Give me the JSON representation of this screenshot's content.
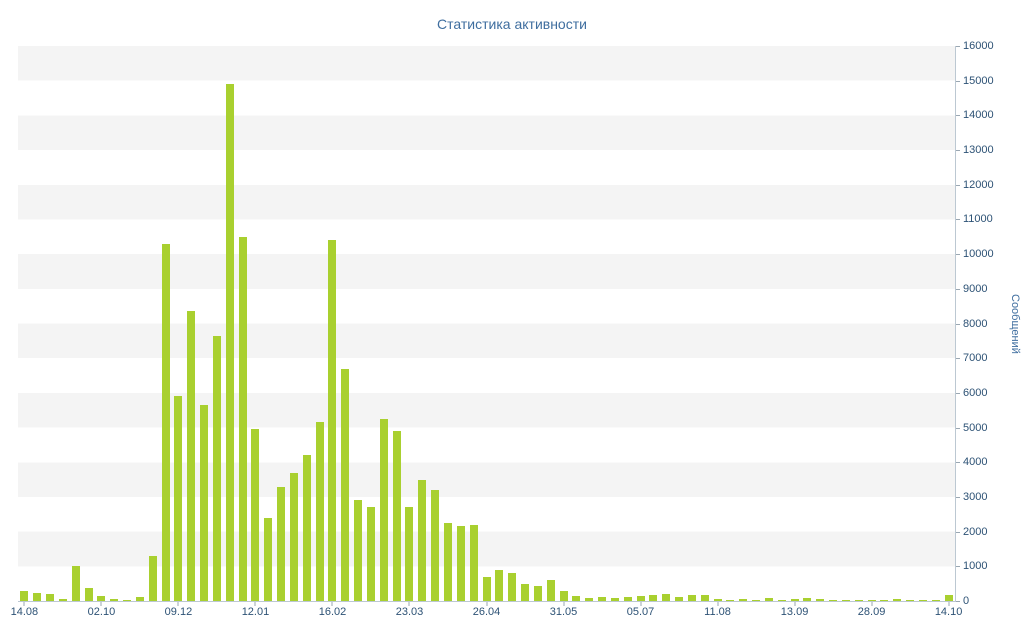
{
  "chart_data": {
    "type": "bar",
    "title": "Статистика активности",
    "ylabel": "Сообщений",
    "xlabel": "",
    "ylim": [
      0,
      16000
    ],
    "y_tick_step": 1000,
    "grid": "striped-horizontal-bands",
    "legend": "none",
    "x_tick_labels": [
      "14.08",
      "02.10",
      "09.12",
      "12.01",
      "16.02",
      "23.03",
      "26.04",
      "31.05",
      "05.07",
      "11.08",
      "13.09",
      "28.09",
      "14.10"
    ],
    "x_tick_indices": [
      0,
      6,
      12,
      18,
      24,
      30,
      36,
      42,
      48,
      54,
      60,
      66,
      72
    ],
    "values": [
      280,
      230,
      200,
      60,
      1000,
      380,
      150,
      60,
      30,
      120,
      1300,
      10300,
      5900,
      8350,
      5650,
      7650,
      14900,
      10500,
      4950,
      2400,
      3300,
      3700,
      4200,
      5150,
      10400,
      6700,
      2900,
      2700,
      5250,
      4900,
      2700,
      3500,
      3200,
      2250,
      2150,
      2200,
      700,
      900,
      800,
      500,
      430,
      600,
      280,
      150,
      100,
      130,
      90,
      120,
      150,
      180,
      200,
      120,
      160,
      180,
      60,
      40,
      50,
      30,
      80,
      40,
      60,
      90,
      50,
      30,
      20,
      30,
      40,
      30,
      60,
      20,
      30,
      40,
      180
    ],
    "colors": {
      "bar": "#a9d02f",
      "title": "#3f6e9f",
      "tick_text": "#2d5275",
      "tick_mark": "#9aa7b2",
      "axis_line": "#bcc8d2",
      "stripe": "#f4f4f4",
      "background": "#ffffff"
    }
  }
}
